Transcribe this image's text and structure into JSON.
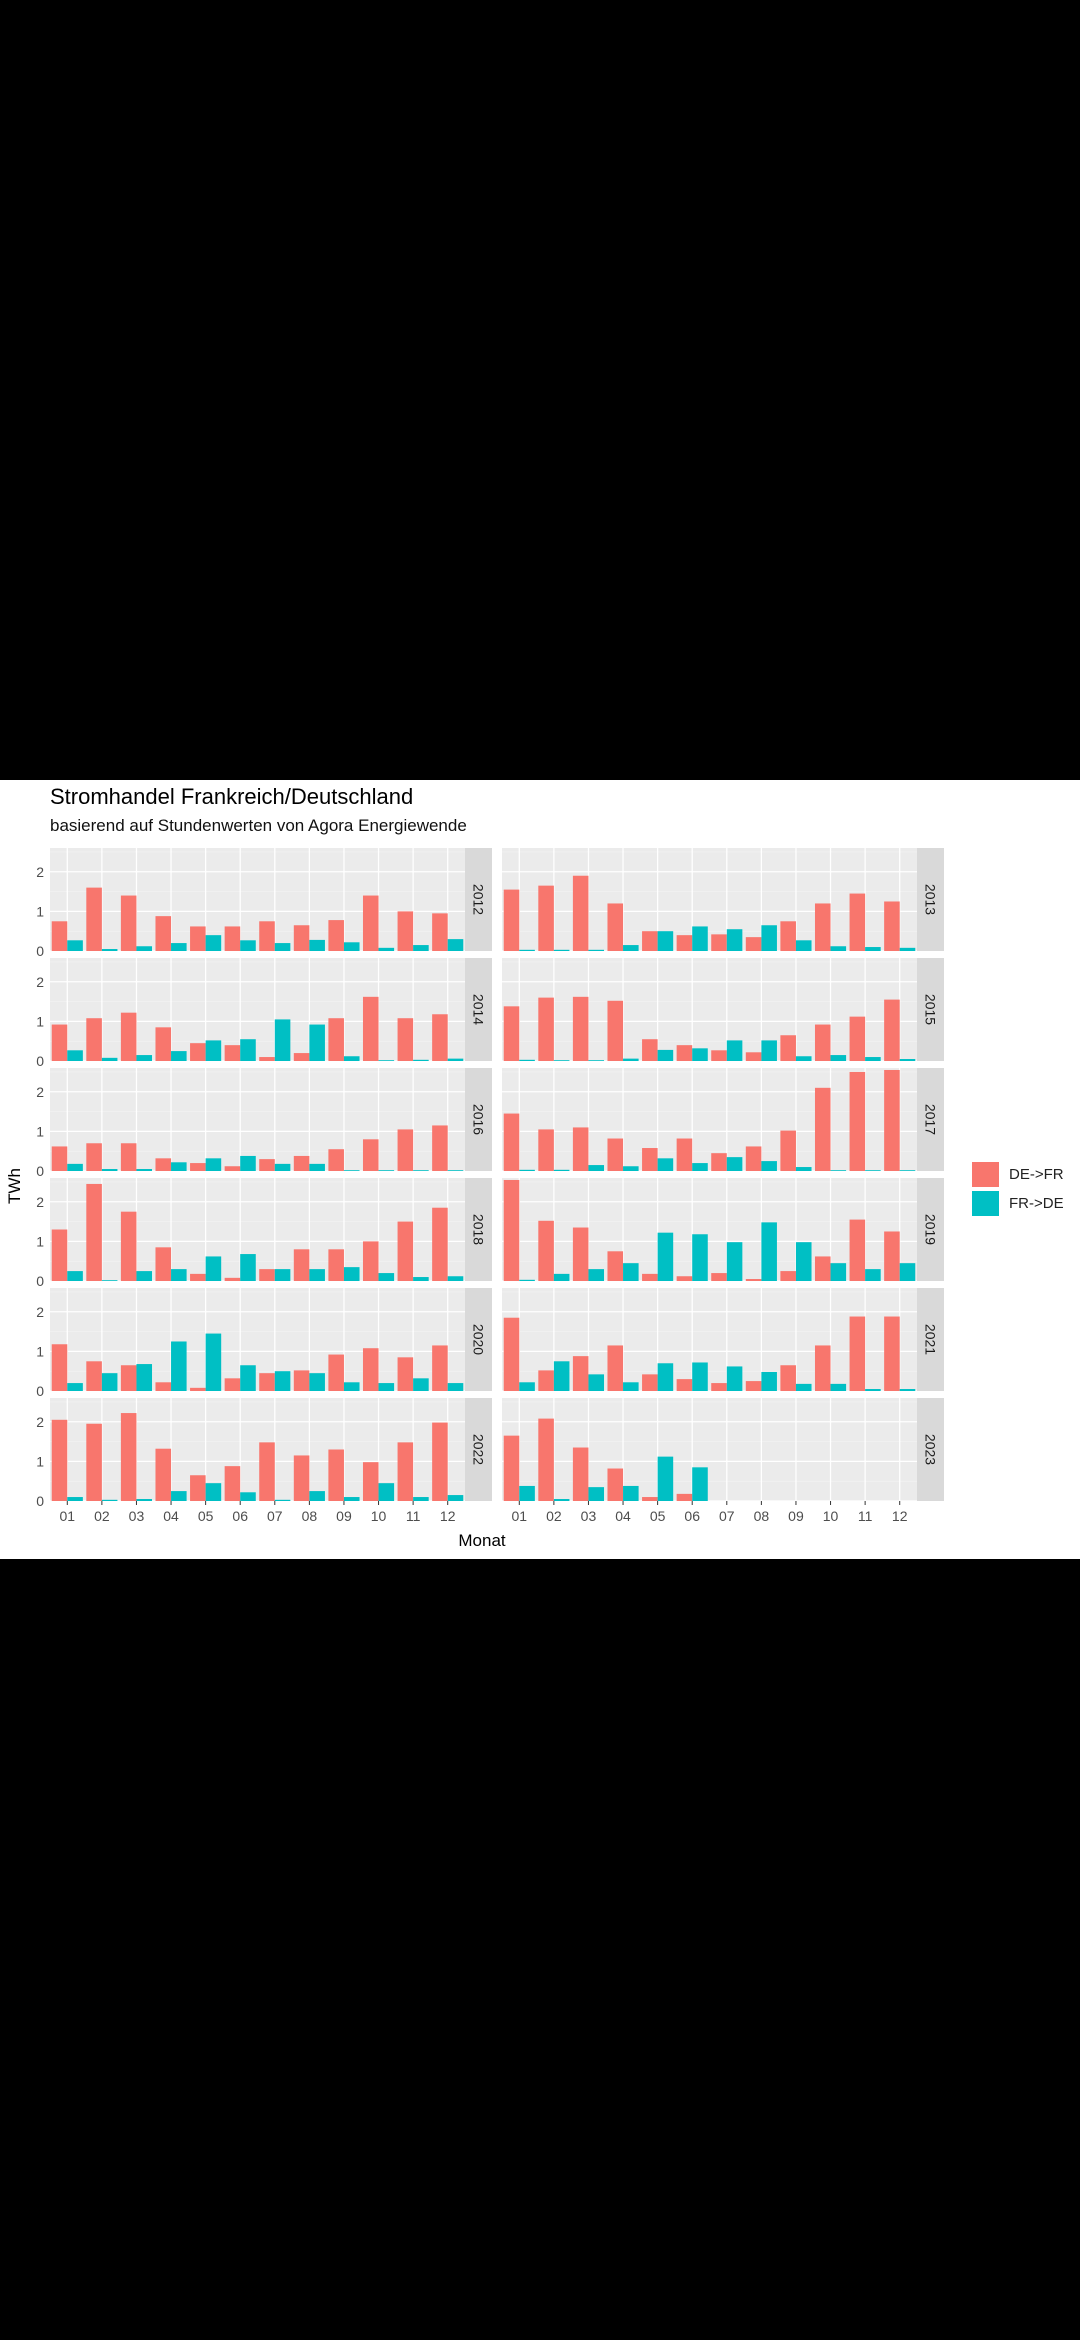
{
  "chart_data": {
    "type": "bar",
    "title": "Stromhandel Frankreich/Deutschland",
    "subtitle": "basierend auf Stundenwerten von Agora Energiewende",
    "xlabel": "Monat",
    "ylabel": "TWh",
    "categories": [
      "01",
      "02",
      "03",
      "04",
      "05",
      "06",
      "07",
      "08",
      "09",
      "10",
      "11",
      "12"
    ],
    "y_ticks": [
      "0",
      "1",
      "2"
    ],
    "ylim": [
      0,
      2.6
    ],
    "grid": true,
    "legend_position": "right",
    "series_names": [
      "DE->FR",
      "FR->DE"
    ],
    "colors": {
      "DE->FR": "#F8766D",
      "FR->DE": "#00BFC4"
    },
    "panels": [
      {
        "year": "2012",
        "DE->FR": [
          0.75,
          1.6,
          1.4,
          0.88,
          0.62,
          0.62,
          0.75,
          0.65,
          0.78,
          1.4,
          1.0,
          0.95
        ],
        "FR->DE": [
          0.27,
          0.05,
          0.12,
          0.2,
          0.4,
          0.27,
          0.2,
          0.28,
          0.22,
          0.08,
          0.15,
          0.3
        ]
      },
      {
        "year": "2013",
        "DE->FR": [
          1.55,
          1.65,
          1.9,
          1.2,
          0.5,
          0.4,
          0.42,
          0.35,
          0.75,
          1.2,
          1.45,
          1.25
        ],
        "FR->DE": [
          0.03,
          0.03,
          0.03,
          0.15,
          0.5,
          0.62,
          0.55,
          0.65,
          0.27,
          0.12,
          0.1,
          0.08
        ]
      },
      {
        "year": "2014",
        "DE->FR": [
          0.92,
          1.08,
          1.22,
          0.85,
          0.45,
          0.4,
          0.1,
          0.2,
          1.08,
          1.62,
          1.08,
          1.18
        ],
        "FR->DE": [
          0.27,
          0.08,
          0.15,
          0.25,
          0.52,
          0.55,
          1.05,
          0.92,
          0.12,
          0.02,
          0.03,
          0.06
        ]
      },
      {
        "year": "2015",
        "DE->FR": [
          1.38,
          1.6,
          1.62,
          1.52,
          0.55,
          0.4,
          0.27,
          0.22,
          0.65,
          0.92,
          1.12,
          1.55
        ],
        "FR->DE": [
          0.03,
          0.02,
          0.02,
          0.06,
          0.28,
          0.32,
          0.52,
          0.52,
          0.12,
          0.15,
          0.1,
          0.05
        ]
      },
      {
        "year": "2016",
        "DE->FR": [
          0.62,
          0.7,
          0.7,
          0.32,
          0.2,
          0.12,
          0.3,
          0.38,
          0.55,
          0.8,
          1.05,
          1.15
        ],
        "FR->DE": [
          0.18,
          0.05,
          0.05,
          0.22,
          0.32,
          0.38,
          0.18,
          0.18,
          0.02,
          0.02,
          0.02,
          0.02
        ]
      },
      {
        "year": "2017",
        "DE->FR": [
          1.45,
          1.05,
          1.1,
          0.82,
          0.58,
          0.82,
          0.45,
          0.62,
          1.02,
          2.1,
          2.5,
          2.55
        ],
        "FR->DE": [
          0.03,
          0.03,
          0.15,
          0.12,
          0.32,
          0.2,
          0.35,
          0.25,
          0.1,
          0.02,
          0.02,
          0.02
        ]
      },
      {
        "year": "2018",
        "DE->FR": [
          1.3,
          2.45,
          1.75,
          0.85,
          0.18,
          0.08,
          0.3,
          0.8,
          0.8,
          1.0,
          1.5,
          1.85
        ],
        "FR->DE": [
          0.25,
          0.02,
          0.25,
          0.3,
          0.62,
          0.68,
          0.3,
          0.3,
          0.35,
          0.2,
          0.1,
          0.12
        ]
      },
      {
        "year": "2019",
        "DE->FR": [
          2.55,
          1.52,
          1.35,
          0.75,
          0.18,
          0.12,
          0.2,
          0.05,
          0.25,
          0.62,
          1.55,
          1.25
        ],
        "FR->DE": [
          0.03,
          0.18,
          0.3,
          0.45,
          1.22,
          1.18,
          0.98,
          1.48,
          0.98,
          0.45,
          0.3,
          0.45
        ]
      },
      {
        "year": "2020",
        "DE->FR": [
          1.18,
          0.75,
          0.65,
          0.22,
          0.08,
          0.32,
          0.45,
          0.52,
          0.92,
          1.08,
          0.85,
          1.15
        ],
        "FR->DE": [
          0.2,
          0.45,
          0.68,
          1.25,
          1.45,
          0.65,
          0.5,
          0.45,
          0.22,
          0.2,
          0.32,
          0.2
        ]
      },
      {
        "year": "2021",
        "DE->FR": [
          1.85,
          0.52,
          0.88,
          1.15,
          0.42,
          0.3,
          0.2,
          0.25,
          0.65,
          1.15,
          1.88,
          1.88
        ],
        "FR->DE": [
          0.22,
          0.75,
          0.42,
          0.22,
          0.7,
          0.72,
          0.62,
          0.48,
          0.18,
          0.18,
          0.05,
          0.05
        ]
      },
      {
        "year": "2022",
        "DE->FR": [
          2.05,
          1.95,
          2.22,
          1.32,
          0.65,
          0.88,
          1.48,
          1.15,
          1.3,
          0.98,
          1.48,
          1.98
        ],
        "FR->DE": [
          0.1,
          0.03,
          0.05,
          0.25,
          0.45,
          0.22,
          0.03,
          0.25,
          0.1,
          0.45,
          0.1,
          0.15
        ]
      },
      {
        "year": "2023",
        "DE->FR": [
          1.65,
          2.08,
          1.35,
          0.82,
          0.1,
          0.18
        ],
        "FR->DE": [
          0.38,
          0.05,
          0.35,
          0.38,
          1.12,
          0.85
        ]
      }
    ]
  }
}
